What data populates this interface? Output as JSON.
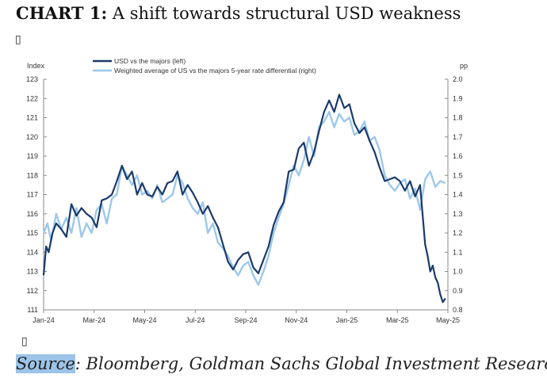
{
  "header": {
    "chart_label": "CHART 1:",
    "title": "A shift towards structural USD weakness",
    "glyph": "▯"
  },
  "footer": {
    "source_label": "Source",
    "source_text": ": Bloomberg, Goldman Sachs Global Investment Research",
    "glyph": "▯"
  },
  "chart_data": {
    "type": "line",
    "left_axis_title": "Index",
    "right_axis_title": "pp",
    "x_labels": [
      "Jan-24",
      "Mar-24",
      "May-24",
      "Jul-24",
      "Sep-24",
      "Nov-24",
      "Jan-25",
      "Mar-25",
      "May-25"
    ],
    "left_ticks": [
      111,
      112,
      113,
      114,
      115,
      116,
      117,
      118,
      119,
      120,
      121,
      122,
      123
    ],
    "right_ticks": [
      "0.8",
      "0.9",
      "1.0",
      "1.1",
      "1.2",
      "1.3",
      "1.4",
      "1.5",
      "1.6",
      "1.7",
      "1.8",
      "1.9",
      "2.0"
    ],
    "ylim_left": [
      111,
      123
    ],
    "ylim_right": [
      0.8,
      2.0
    ],
    "xlim_months": [
      0,
      16
    ],
    "grid": false,
    "legend_position": "top-left",
    "series": [
      {
        "name": "USD vs the majors (left)",
        "axis": "left",
        "color": "#1b3a6b",
        "x_months": [
          0,
          0.1,
          0.2,
          0.35,
          0.5,
          0.7,
          0.9,
          1.1,
          1.3,
          1.5,
          1.7,
          1.9,
          2.1,
          2.3,
          2.5,
          2.7,
          2.9,
          3.1,
          3.3,
          3.5,
          3.7,
          3.9,
          4.1,
          4.3,
          4.5,
          4.7,
          4.9,
          5.1,
          5.3,
          5.5,
          5.7,
          5.9,
          6.1,
          6.3,
          6.5,
          6.7,
          6.9,
          7.1,
          7.3,
          7.5,
          7.7,
          7.9,
          8.1,
          8.3,
          8.5,
          8.7,
          8.9,
          9.1,
          9.3,
          9.5,
          9.7,
          9.9,
          10.1,
          10.3,
          10.5,
          10.7,
          10.9,
          11.1,
          11.3,
          11.5,
          11.7,
          11.9,
          12.1,
          12.3,
          12.5,
          12.7,
          12.9,
          13.1,
          13.3,
          13.5,
          13.7,
          13.9,
          14.1,
          14.3,
          14.5,
          14.7,
          14.9,
          15.1,
          15.2,
          15.3,
          15.4,
          15.5,
          15.6,
          15.7,
          15.8,
          15.9
        ],
        "values": [
          112.8,
          114.3,
          114.0,
          115.0,
          115.5,
          115.2,
          114.8,
          116.5,
          115.9,
          116.3,
          116.0,
          115.8,
          115.3,
          116.7,
          116.8,
          117.0,
          117.7,
          118.5,
          117.8,
          118.2,
          117.0,
          117.6,
          117.0,
          116.9,
          117.4,
          117.0,
          117.6,
          117.7,
          118.2,
          117.0,
          117.5,
          117.1,
          116.6,
          116.0,
          116.4,
          115.8,
          115.3,
          114.4,
          113.5,
          113.1,
          113.6,
          113.9,
          114.0,
          113.2,
          112.9,
          113.6,
          114.3,
          115.4,
          116.1,
          116.6,
          118.2,
          118.3,
          119.4,
          119.7,
          118.5,
          119.2,
          120.3,
          121.3,
          121.9,
          121.3,
          122.2,
          121.5,
          121.7,
          120.7,
          120.2,
          120.5,
          119.8,
          119.2,
          118.4,
          117.7,
          117.8,
          117.9,
          117.7,
          117.2,
          117.7,
          116.9,
          117.5,
          114.4,
          113.8,
          113.0,
          113.3,
          112.7,
          112.4,
          111.8,
          111.4,
          111.6
        ]
      },
      {
        "name": "Weighted average of US vs the majors 5-year rate differential (right)",
        "axis": "right",
        "color": "#9cc8ea",
        "x_months": [
          0,
          0.15,
          0.3,
          0.5,
          0.7,
          0.9,
          1.1,
          1.3,
          1.5,
          1.7,
          1.9,
          2.1,
          2.3,
          2.5,
          2.7,
          2.9,
          3.1,
          3.3,
          3.5,
          3.7,
          3.9,
          4.1,
          4.3,
          4.5,
          4.7,
          4.9,
          5.1,
          5.3,
          5.5,
          5.7,
          5.9,
          6.1,
          6.3,
          6.5,
          6.7,
          6.9,
          7.1,
          7.3,
          7.5,
          7.7,
          7.9,
          8.1,
          8.3,
          8.5,
          8.7,
          8.9,
          9.1,
          9.3,
          9.5,
          9.7,
          9.9,
          10.1,
          10.3,
          10.5,
          10.7,
          10.9,
          11.1,
          11.3,
          11.5,
          11.7,
          11.9,
          12.1,
          12.3,
          12.5,
          12.7,
          12.9,
          13.1,
          13.3,
          13.5,
          13.7,
          13.9,
          14.1,
          14.3,
          14.5,
          14.7,
          14.9,
          15.1,
          15.3,
          15.5,
          15.7,
          15.9
        ],
        "values": [
          1.2,
          1.25,
          1.16,
          1.3,
          1.22,
          1.28,
          1.2,
          1.33,
          1.18,
          1.25,
          1.2,
          1.32,
          1.35,
          1.25,
          1.38,
          1.4,
          1.55,
          1.5,
          1.45,
          1.5,
          1.4,
          1.42,
          1.38,
          1.45,
          1.36,
          1.38,
          1.4,
          1.5,
          1.46,
          1.38,
          1.33,
          1.3,
          1.36,
          1.2,
          1.25,
          1.15,
          1.12,
          1.08,
          1.02,
          0.98,
          1.03,
          1.05,
          0.98,
          0.93,
          1.0,
          1.08,
          1.2,
          1.28,
          1.35,
          1.45,
          1.55,
          1.5,
          1.58,
          1.7,
          1.6,
          1.75,
          1.78,
          1.83,
          1.75,
          1.82,
          1.78,
          1.8,
          1.71,
          1.73,
          1.78,
          1.68,
          1.7,
          1.63,
          1.5,
          1.45,
          1.42,
          1.46,
          1.48,
          1.38,
          1.43,
          1.32,
          1.48,
          1.52,
          1.44,
          1.47,
          1.46
        ]
      }
    ]
  }
}
